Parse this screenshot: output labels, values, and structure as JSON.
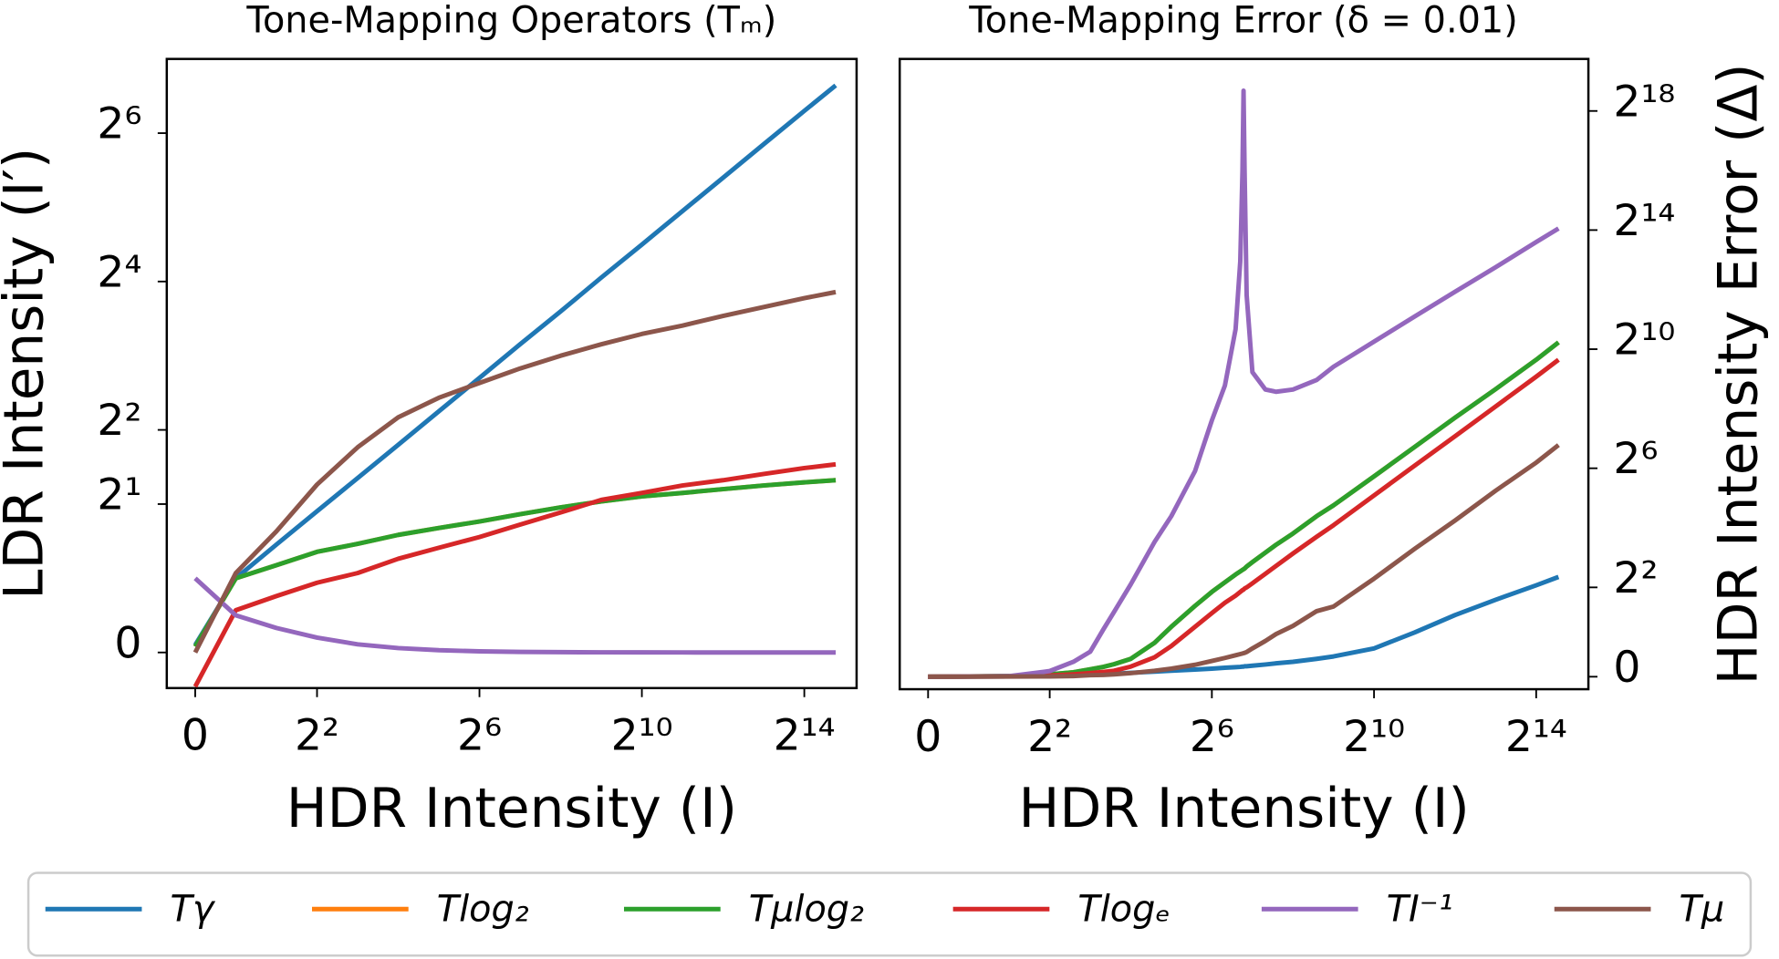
{
  "chart_data": [
    {
      "type": "line",
      "title": "Tone-Mapping Operators (Tₘ)",
      "xlabel": "HDR Intensity (I)",
      "ylabel": "LDR Intensity (I′)",
      "xscale": "symlog",
      "yscale": "symlog",
      "symlog_base": 2,
      "linthresh": 1,
      "xlim": [
        -0.7,
        40000
      ],
      "ylim": [
        -0.48,
        128
      ],
      "xticks": [
        0,
        {
          "value": 4,
          "label": "2²"
        },
        {
          "value": 64,
          "label": "2⁶"
        },
        {
          "value": 1024,
          "label": "2¹⁰"
        },
        {
          "value": 16384,
          "label": "2¹⁴"
        }
      ],
      "yticks": [
        0,
        {
          "value": 2,
          "label": "2¹"
        },
        {
          "value": 4,
          "label": "2²"
        },
        {
          "value": 16,
          "label": "2⁴"
        },
        {
          "value": 64,
          "label": "2⁶"
        }
      ],
      "yaxis_position": "left",
      "legend": "bottom",
      "x": [
        0,
        1,
        2,
        4,
        8,
        16,
        32,
        64,
        128,
        256,
        512,
        1024,
        2048,
        4096,
        8192,
        16384,
        28000
      ],
      "series": [
        {
          "name": "Tγ",
          "color": "#1f77b4",
          "values": [
            0.1,
            1,
            1.37,
            1.87,
            2.55,
            3.48,
            4.76,
            6.5,
            8.9,
            12.1,
            16.6,
            22.6,
            30.9,
            42.2,
            57.7,
            78.8,
            100
          ]
        },
        {
          "name": "Tlog₂",
          "color": "#ff7f0e",
          "values": [
            0.08,
            1,
            1.13,
            1.28,
            1.38,
            1.5,
            1.6,
            1.7,
            1.82,
            1.94,
            2.05,
            2.15,
            2.22,
            2.3,
            2.38,
            2.45,
            2.5
          ]
        },
        {
          "name": "Tμlog₂",
          "color": "#2ca02c",
          "values": [
            0.08,
            1,
            1.13,
            1.28,
            1.38,
            1.5,
            1.6,
            1.7,
            1.82,
            1.94,
            2.05,
            2.15,
            2.22,
            2.3,
            2.38,
            2.45,
            2.5
          ]
        },
        {
          "name": "Tlogₑ",
          "color": "#d62728",
          "values": [
            -0.46,
            0.57,
            0.76,
            0.94,
            1.05,
            1.2,
            1.33,
            1.47,
            1.65,
            1.85,
            2.08,
            2.22,
            2.38,
            2.5,
            2.65,
            2.8,
            2.9
          ]
        },
        {
          "name": "TI⁻¹",
          "color": "#9467bd",
          "values": [
            1,
            0.5,
            0.33,
            0.2,
            0.11,
            0.059,
            0.03,
            0.015,
            0.0078,
            0.0039,
            0.002,
            0.001,
            0.0005,
            0.00024,
            0.00012,
            6e-05,
            4e-05
          ]
        },
        {
          "name": "Tμ",
          "color": "#8c564b",
          "values": [
            0,
            1.05,
            1.55,
            2.4,
            3.4,
            4.5,
            5.4,
            6.2,
            7.1,
            8,
            8.9,
            9.8,
            10.6,
            11.6,
            12.6,
            13.7,
            14.5
          ]
        }
      ]
    },
    {
      "type": "line",
      "title": "Tone-Mapping Error (δ = 0.01)",
      "xlabel": "HDR Intensity (I)",
      "ylabel": "HDR Intensity Error (Δ)",
      "xscale": "symlog",
      "yscale": "symlog",
      "symlog_base": 2,
      "linthresh": 1,
      "xlim": [
        -0.7,
        40000
      ],
      "ylim": [
        -0.42,
        880000
      ],
      "xticks": [
        0,
        {
          "value": 4,
          "label": "2²"
        },
        {
          "value": 64,
          "label": "2⁶"
        },
        {
          "value": 1024,
          "label": "2¹⁰"
        },
        {
          "value": 16384,
          "label": "2¹⁴"
        }
      ],
      "yticks": [
        0,
        {
          "value": 4,
          "label": "2²"
        },
        {
          "value": 64,
          "label": "2⁶"
        },
        {
          "value": 1024,
          "label": "2¹⁰"
        },
        {
          "value": 16384,
          "label": "2¹⁴"
        },
        {
          "value": 262144,
          "label": "2¹⁸"
        }
      ],
      "yaxis_position": "right",
      "x": [
        0,
        1,
        2,
        4,
        6,
        8,
        10,
        12,
        16,
        24,
        32,
        48,
        64,
        80,
        96,
        104,
        108,
        110,
        112,
        116,
        128,
        160,
        192,
        256,
        384,
        512,
        1024,
        2048,
        4096,
        8192,
        16384,
        24000
      ],
      "series": [
        {
          "color": "#1f77b4",
          "values": [
            0,
            0.005,
            0.01,
            0.03,
            0.05,
            0.07,
            0.09,
            0.1,
            0.13,
            0.17,
            0.2,
            0.24,
            0.27,
            0.3,
            0.32,
            0.33,
            0.34,
            0.34,
            0.35,
            0.35,
            0.37,
            0.41,
            0.45,
            0.5,
            0.6,
            0.68,
            0.95,
            1.4,
            2.1,
            3.0,
            4.2,
            5.1
          ]
        },
        {
          "color": "#ff7f0e",
          "values": [
            0,
            0.01,
            0.02,
            0.08,
            0.15,
            0.25,
            0.33,
            0.42,
            0.6,
            1.1,
            1.6,
            2.6,
            3.6,
            4.5,
            5.4,
            5.8,
            6.0,
            6.1,
            6.2,
            6.5,
            7.2,
            9,
            10.8,
            14,
            21,
            27,
            53,
            105,
            208,
            404,
            800,
            1200
          ]
        },
        {
          "color": "#2ca02c",
          "values": [
            0,
            0.01,
            0.02,
            0.08,
            0.15,
            0.25,
            0.33,
            0.42,
            0.6,
            1.1,
            1.6,
            2.6,
            3.6,
            4.5,
            5.4,
            5.8,
            6.0,
            6.1,
            6.2,
            6.5,
            7.2,
            9,
            10.8,
            14,
            21,
            27,
            53,
            105,
            208,
            404,
            800,
            1200
          ]
        },
        {
          "color": "#d62728",
          "values": [
            0,
            0.005,
            0.01,
            0.04,
            0.08,
            0.12,
            0.16,
            0.2,
            0.34,
            0.65,
            1.02,
            1.6,
            2.2,
            2.8,
            3.3,
            3.6,
            3.75,
            3.8,
            3.9,
            4.0,
            4.4,
            5.5,
            6.6,
            8.8,
            13,
            17,
            34,
            68,
            135,
            270,
            540,
            800
          ]
        },
        {
          "color": "#9467bd",
          "values": [
            0,
            0.005,
            0.02,
            0.19,
            0.5,
            0.84,
            1.5,
            2.25,
            4.3,
            11.5,
            21,
            60,
            195,
            440,
            1630,
            7900,
            65000,
            420000,
            65000,
            3600,
            600,
            400,
            380,
            400,
            500,
            680,
            1220,
            2190,
            3900,
            6900,
            12400,
            17000
          ]
        },
        {
          "color": "#8c564b",
          "values": [
            0,
            0.002,
            0.005,
            0.01,
            0.02,
            0.05,
            0.06,
            0.08,
            0.12,
            0.2,
            0.27,
            0.4,
            0.53,
            0.63,
            0.72,
            0.76,
            0.78,
            0.79,
            0.8,
            0.83,
            0.95,
            1.15,
            1.35,
            1.63,
            2.3,
            2.56,
            4.9,
            9.8,
            19,
            38,
            73,
            110
          ]
        }
      ]
    }
  ]
}
